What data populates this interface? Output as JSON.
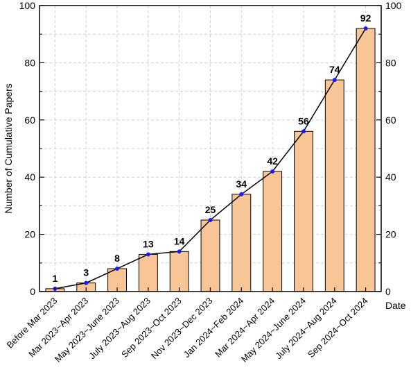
{
  "chart_data": {
    "type": "bar",
    "categories": [
      "Before Mar 2023",
      "Mar 2023~Apr 2023",
      "May 2023~June 2023",
      "July 2023~Aug 2023",
      "Sep 2023~Oct 2023",
      "Nov 2023~Dec 2023",
      "Jan 2024~Feb 2024",
      "Mar 2024~Apr 2024",
      "May 2024~June 2024",
      "July 2024~Aug 2024",
      "Sep 2024~Oct 2024"
    ],
    "values": [
      1,
      3,
      8,
      13,
      14,
      25,
      34,
      42,
      56,
      74,
      92
    ],
    "data_labels": [
      "1",
      "3",
      "8",
      "13",
      "14",
      "25",
      "34",
      "42",
      "56",
      "74",
      "92"
    ],
    "overlay_line": true,
    "xlabel": "Date",
    "ylabel": "Number of Cumulative Papers",
    "ylim": [
      0,
      100
    ],
    "yticks": [
      0,
      20,
      40,
      60,
      80,
      100
    ],
    "ytick_labels": [
      "0",
      "20",
      "40",
      "60",
      "80",
      "100"
    ],
    "right_axis_mirror": true,
    "grid": true,
    "colors": {
      "bar_fill": "#f8c696",
      "bar_stroke": "#000000",
      "line": "#000000",
      "marker": "#1a1aff",
      "grid": "#d0d0d0"
    }
  }
}
